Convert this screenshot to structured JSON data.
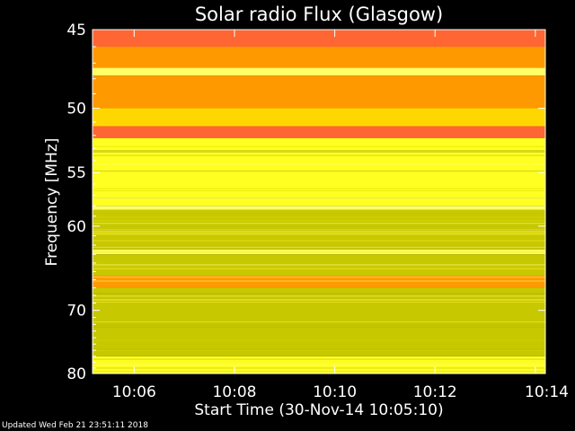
{
  "chart_data": {
    "type": "heatmap",
    "title": "Solar radio Flux (Glasgow)",
    "xlabel": "Start Time (30-Nov-14 10:05:10)",
    "ylabel": "Frequency [MHz]",
    "x_ticks": [
      "10:06",
      "10:08",
      "10:10",
      "10:12",
      "10:14"
    ],
    "x_tick_minutes": [
      6,
      8,
      10,
      12,
      14
    ],
    "x_range_minutes": [
      5.17,
      14.2
    ],
    "y_ticks": [
      45,
      50,
      55,
      60,
      70,
      80
    ],
    "y_range": [
      45,
      80
    ],
    "y_scale": "reciprocal",
    "colors": {
      "background": "#000000",
      "bright": "#ffff66",
      "high": "#ffd700",
      "mid": "#ffff22",
      "low": "#c8c800",
      "orange": "#ff9900",
      "hot": "#ff6633"
    },
    "bands": [
      {
        "from": 45.0,
        "to": 46.0,
        "level": "hot"
      },
      {
        "from": 46.0,
        "to": 47.3,
        "level": "orange"
      },
      {
        "from": 47.3,
        "to": 47.8,
        "level": "bright"
      },
      {
        "from": 47.8,
        "to": 50.0,
        "level": "orange"
      },
      {
        "from": 50.0,
        "to": 51.3,
        "level": "high"
      },
      {
        "from": 51.3,
        "to": 52.2,
        "level": "hot"
      },
      {
        "from": 52.2,
        "to": 58.0,
        "level": "mid"
      },
      {
        "from": 58.0,
        "to": 58.4,
        "level": "bright"
      },
      {
        "from": 58.4,
        "to": 62.5,
        "level": "low"
      },
      {
        "from": 62.5,
        "to": 63.0,
        "level": "bright"
      },
      {
        "from": 63.0,
        "to": 65.5,
        "level": "low"
      },
      {
        "from": 65.5,
        "to": 67.0,
        "level": "orange"
      },
      {
        "from": 67.0,
        "to": 77.0,
        "level": "low"
      },
      {
        "from": 77.0,
        "to": 80.0,
        "level": "mid"
      }
    ]
  },
  "footer": {
    "updated": "Updated Wed Feb 21 23:51:11 2018"
  }
}
